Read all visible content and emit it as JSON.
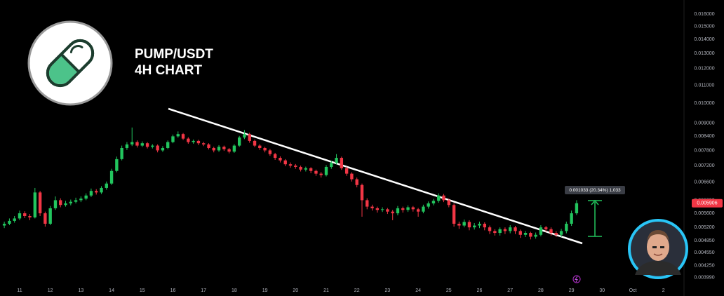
{
  "chart_data": {
    "type": "candlestick",
    "title": "PUMP/USDT",
    "subtitle": "4H CHART",
    "x": [
      10.5,
      10.667,
      10.833,
      11,
      11.167,
      11.333,
      11.5,
      11.667,
      11.833,
      12,
      12.167,
      12.333,
      12.5,
      12.667,
      12.833,
      13,
      13.167,
      13.333,
      13.5,
      13.667,
      13.833,
      14,
      14.167,
      14.333,
      14.5,
      14.667,
      14.833,
      15,
      15.167,
      15.333,
      15.5,
      15.667,
      15.833,
      16,
      16.167,
      16.333,
      16.5,
      16.667,
      16.833,
      17,
      17.167,
      17.333,
      17.5,
      17.667,
      17.833,
      18,
      18.167,
      18.333,
      18.5,
      18.667,
      18.833,
      19,
      19.167,
      19.333,
      19.5,
      19.667,
      19.833,
      20,
      20.167,
      20.333,
      20.5,
      20.667,
      20.833,
      21,
      21.167,
      21.333,
      21.5,
      21.667,
      21.833,
      22,
      22.167,
      22.333,
      22.5,
      22.667,
      22.833,
      23,
      23.167,
      23.333,
      23.5,
      23.667,
      23.833,
      24,
      24.167,
      24.333,
      24.5,
      24.667,
      24.833,
      25,
      25.167,
      25.333,
      25.5,
      25.667,
      25.833,
      26,
      26.167,
      26.333,
      26.5,
      26.667,
      26.833,
      27,
      27.167,
      27.333,
      27.5,
      27.667,
      27.833,
      28,
      28.167,
      28.333,
      28.5,
      28.667,
      28.833,
      29,
      29.167
    ],
    "open": [
      0.00525,
      0.0053,
      0.00538,
      0.00545,
      0.0056,
      0.00552,
      0.00548,
      0.00625,
      0.0056,
      0.0053,
      0.00575,
      0.006,
      0.00585,
      0.0059,
      0.00595,
      0.006,
      0.00605,
      0.00615,
      0.0063,
      0.00625,
      0.0064,
      0.00655,
      0.007,
      0.00745,
      0.0079,
      0.00805,
      0.00815,
      0.008,
      0.0081,
      0.00795,
      0.008,
      0.0078,
      0.0079,
      0.00815,
      0.0084,
      0.0085,
      0.0083,
      0.00815,
      0.0082,
      0.0081,
      0.00805,
      0.0079,
      0.0078,
      0.00795,
      0.00785,
      0.00775,
      0.008,
      0.00835,
      0.0085,
      0.0082,
      0.008,
      0.0079,
      0.0078,
      0.00765,
      0.0075,
      0.0074,
      0.00725,
      0.0072,
      0.00715,
      0.00705,
      0.0071,
      0.007,
      0.0069,
      0.00685,
      0.00715,
      0.0073,
      0.0075,
      0.0071,
      0.0069,
      0.0067,
      0.0065,
      0.006,
      0.0058,
      0.00575,
      0.0057,
      0.00572,
      0.00565,
      0.0056,
      0.00575,
      0.0057,
      0.00578,
      0.00572,
      0.00565,
      0.0058,
      0.0059,
      0.00598,
      0.00615,
      0.006,
      0.00585,
      0.0053,
      0.00525,
      0.00535,
      0.0052,
      0.00525,
      0.0053,
      0.0052,
      0.0051,
      0.00505,
      0.00515,
      0.0051,
      0.0052,
      0.0051,
      0.005,
      0.00505,
      0.00495,
      0.005,
      0.0052,
      0.00515,
      0.00505,
      0.005,
      0.0051,
      0.0053,
      0.0056
    ],
    "high": [
      0.00536,
      0.00545,
      0.00552,
      0.00568,
      0.00566,
      0.00558,
      0.0064,
      0.0063,
      0.00565,
      0.00582,
      0.00612,
      0.00606,
      0.00598,
      0.00602,
      0.00608,
      0.00612,
      0.00622,
      0.00638,
      0.00636,
      0.00646,
      0.00662,
      0.00708,
      0.00755,
      0.008,
      0.00815,
      0.0088,
      0.00822,
      0.00818,
      0.00815,
      0.00806,
      0.00805,
      0.00798,
      0.00822,
      0.00848,
      0.00862,
      0.00855,
      0.00836,
      0.00826,
      0.00825,
      0.00816,
      0.0081,
      0.00795,
      0.00802,
      0.008,
      0.0079,
      0.00806,
      0.00842,
      0.00868,
      0.00856,
      0.00826,
      0.00806,
      0.00795,
      0.00786,
      0.0077,
      0.00756,
      0.00745,
      0.00732,
      0.00726,
      0.0072,
      0.00716,
      0.00714,
      0.00705,
      0.00696,
      0.00722,
      0.00738,
      0.00765,
      0.00755,
      0.00716,
      0.00695,
      0.00676,
      0.00655,
      0.00606,
      0.00586,
      0.0058,
      0.00578,
      0.00576,
      0.0057,
      0.00582,
      0.0058,
      0.00584,
      0.00582,
      0.00576,
      0.00586,
      0.00596,
      0.00604,
      0.00622,
      0.0062,
      0.00605,
      0.0059,
      0.00536,
      0.00542,
      0.0054,
      0.00532,
      0.00536,
      0.00534,
      0.00525,
      0.00515,
      0.0052,
      0.0052,
      0.00526,
      0.00524,
      0.00514,
      0.0051,
      0.00508,
      0.00506,
      0.00526,
      0.00524,
      0.0052,
      0.0051,
      0.00516,
      0.00536,
      0.00568,
      0.006
    ],
    "low": [
      0.00518,
      0.00526,
      0.00533,
      0.0054,
      0.00546,
      0.0054,
      0.00545,
      0.00552,
      0.00522,
      0.00526,
      0.0057,
      0.00578,
      0.0058,
      0.00584,
      0.0059,
      0.00594,
      0.006,
      0.0061,
      0.00618,
      0.0062,
      0.00634,
      0.0065,
      0.00695,
      0.0074,
      0.00782,
      0.00798,
      0.00792,
      0.00794,
      0.00788,
      0.00788,
      0.00772,
      0.00774,
      0.00785,
      0.0081,
      0.00834,
      0.00824,
      0.00808,
      0.00808,
      0.00802,
      0.00798,
      0.00784,
      0.00772,
      0.00774,
      0.00778,
      0.00768,
      0.0077,
      0.00795,
      0.00828,
      0.00812,
      0.00794,
      0.00782,
      0.00772,
      0.00758,
      0.00742,
      0.00732,
      0.00718,
      0.00712,
      0.00708,
      0.00698,
      0.00698,
      0.00692,
      0.00682,
      0.00676,
      0.0068,
      0.00708,
      0.00724,
      0.00704,
      0.00682,
      0.00662,
      0.00642,
      0.0055,
      0.00572,
      0.00568,
      0.00562,
      0.00564,
      0.00558,
      0.0054,
      0.00554,
      0.00562,
      0.00564,
      0.00565,
      0.0055,
      0.0056,
      0.00574,
      0.00584,
      0.00592,
      0.00594,
      0.00578,
      0.00522,
      0.00516,
      0.0052,
      0.00512,
      0.00514,
      0.00518,
      0.00512,
      0.00502,
      0.00498,
      0.00498,
      0.00502,
      0.00504,
      0.00502,
      0.00492,
      0.00494,
      0.00488,
      0.0049,
      0.00496,
      0.00508,
      0.00498,
      0.00494,
      0.00494,
      0.00504,
      0.00524,
      0.00555
    ],
    "close": [
      0.0053,
      0.00538,
      0.00545,
      0.0056,
      0.00552,
      0.00548,
      0.00625,
      0.0056,
      0.0053,
      0.00575,
      0.006,
      0.00585,
      0.0059,
      0.00595,
      0.006,
      0.00605,
      0.00615,
      0.0063,
      0.00625,
      0.0064,
      0.00655,
      0.007,
      0.00745,
      0.0079,
      0.00805,
      0.00815,
      0.008,
      0.0081,
      0.00795,
      0.008,
      0.0078,
      0.0079,
      0.00815,
      0.0084,
      0.0085,
      0.0083,
      0.00815,
      0.0082,
      0.0081,
      0.00805,
      0.0079,
      0.0078,
      0.00795,
      0.00785,
      0.00775,
      0.008,
      0.00835,
      0.0085,
      0.0082,
      0.008,
      0.0079,
      0.0078,
      0.00765,
      0.0075,
      0.0074,
      0.00725,
      0.0072,
      0.00715,
      0.00705,
      0.0071,
      0.007,
      0.0069,
      0.00685,
      0.00715,
      0.0073,
      0.0075,
      0.0071,
      0.0069,
      0.0067,
      0.0065,
      0.006,
      0.0058,
      0.00575,
      0.0057,
      0.00572,
      0.00565,
      0.0056,
      0.00575,
      0.0057,
      0.00578,
      0.00572,
      0.00565,
      0.0058,
      0.0059,
      0.00598,
      0.00615,
      0.006,
      0.00585,
      0.0053,
      0.00525,
      0.00535,
      0.0052,
      0.00525,
      0.0053,
      0.0052,
      0.0051,
      0.00505,
      0.00515,
      0.0051,
      0.0052,
      0.0051,
      0.005,
      0.00505,
      0.00495,
      0.005,
      0.0052,
      0.00515,
      0.00505,
      0.005,
      0.0051,
      0.0053,
      0.0056,
      0.005906
    ],
    "up_color": "#22c55e",
    "down_color": "#f23645",
    "log_scale": true,
    "grid": false,
    "xlim": [
      10.36,
      32.67
    ],
    "ylim": [
      0.003786,
      0.01723
    ],
    "xticks": [
      11,
      12,
      13,
      14,
      15,
      16,
      17,
      18,
      19,
      20,
      21,
      22,
      23,
      24,
      25,
      26,
      27,
      28,
      29,
      30,
      {
        "value": 31,
        "label": "Oct"
      },
      {
        "value": 32,
        "label": "2"
      }
    ],
    "yticks": [
      {
        "value": 0.016,
        "label": "0.016000"
      },
      {
        "value": 0.015,
        "label": "0.015000"
      },
      {
        "value": 0.014,
        "label": "0.014000"
      },
      {
        "value": 0.013,
        "label": "0.013000"
      },
      {
        "value": 0.012,
        "label": "0.012000"
      },
      {
        "value": 0.011,
        "label": "0.011000"
      },
      {
        "value": 0.01,
        "label": "0.010000"
      },
      {
        "value": 0.009,
        "label": "0.009000"
      },
      {
        "value": 0.0084,
        "label": "0.008400"
      },
      {
        "value": 0.0078,
        "label": "0.007800"
      },
      {
        "value": 0.0072,
        "label": "0.007200"
      },
      {
        "value": 0.0066,
        "label": "0.006600"
      },
      {
        "value": 0.006,
        "label": "0.006000"
      },
      {
        "value": 0.0056,
        "label": "0.005600"
      },
      {
        "value": 0.0052,
        "label": "0.005200"
      },
      {
        "value": 0.00485,
        "label": "0.004850"
      },
      {
        "value": 0.00455,
        "label": "0.004550"
      },
      {
        "value": 0.00425,
        "label": "0.004250"
      },
      {
        "value": 0.00399,
        "label": "0.003990"
      }
    ],
    "current_price": {
      "value": 0.005906,
      "label": "0.005906"
    },
    "annotation": "0.001033 (20.34%) 1,033"
  }
}
